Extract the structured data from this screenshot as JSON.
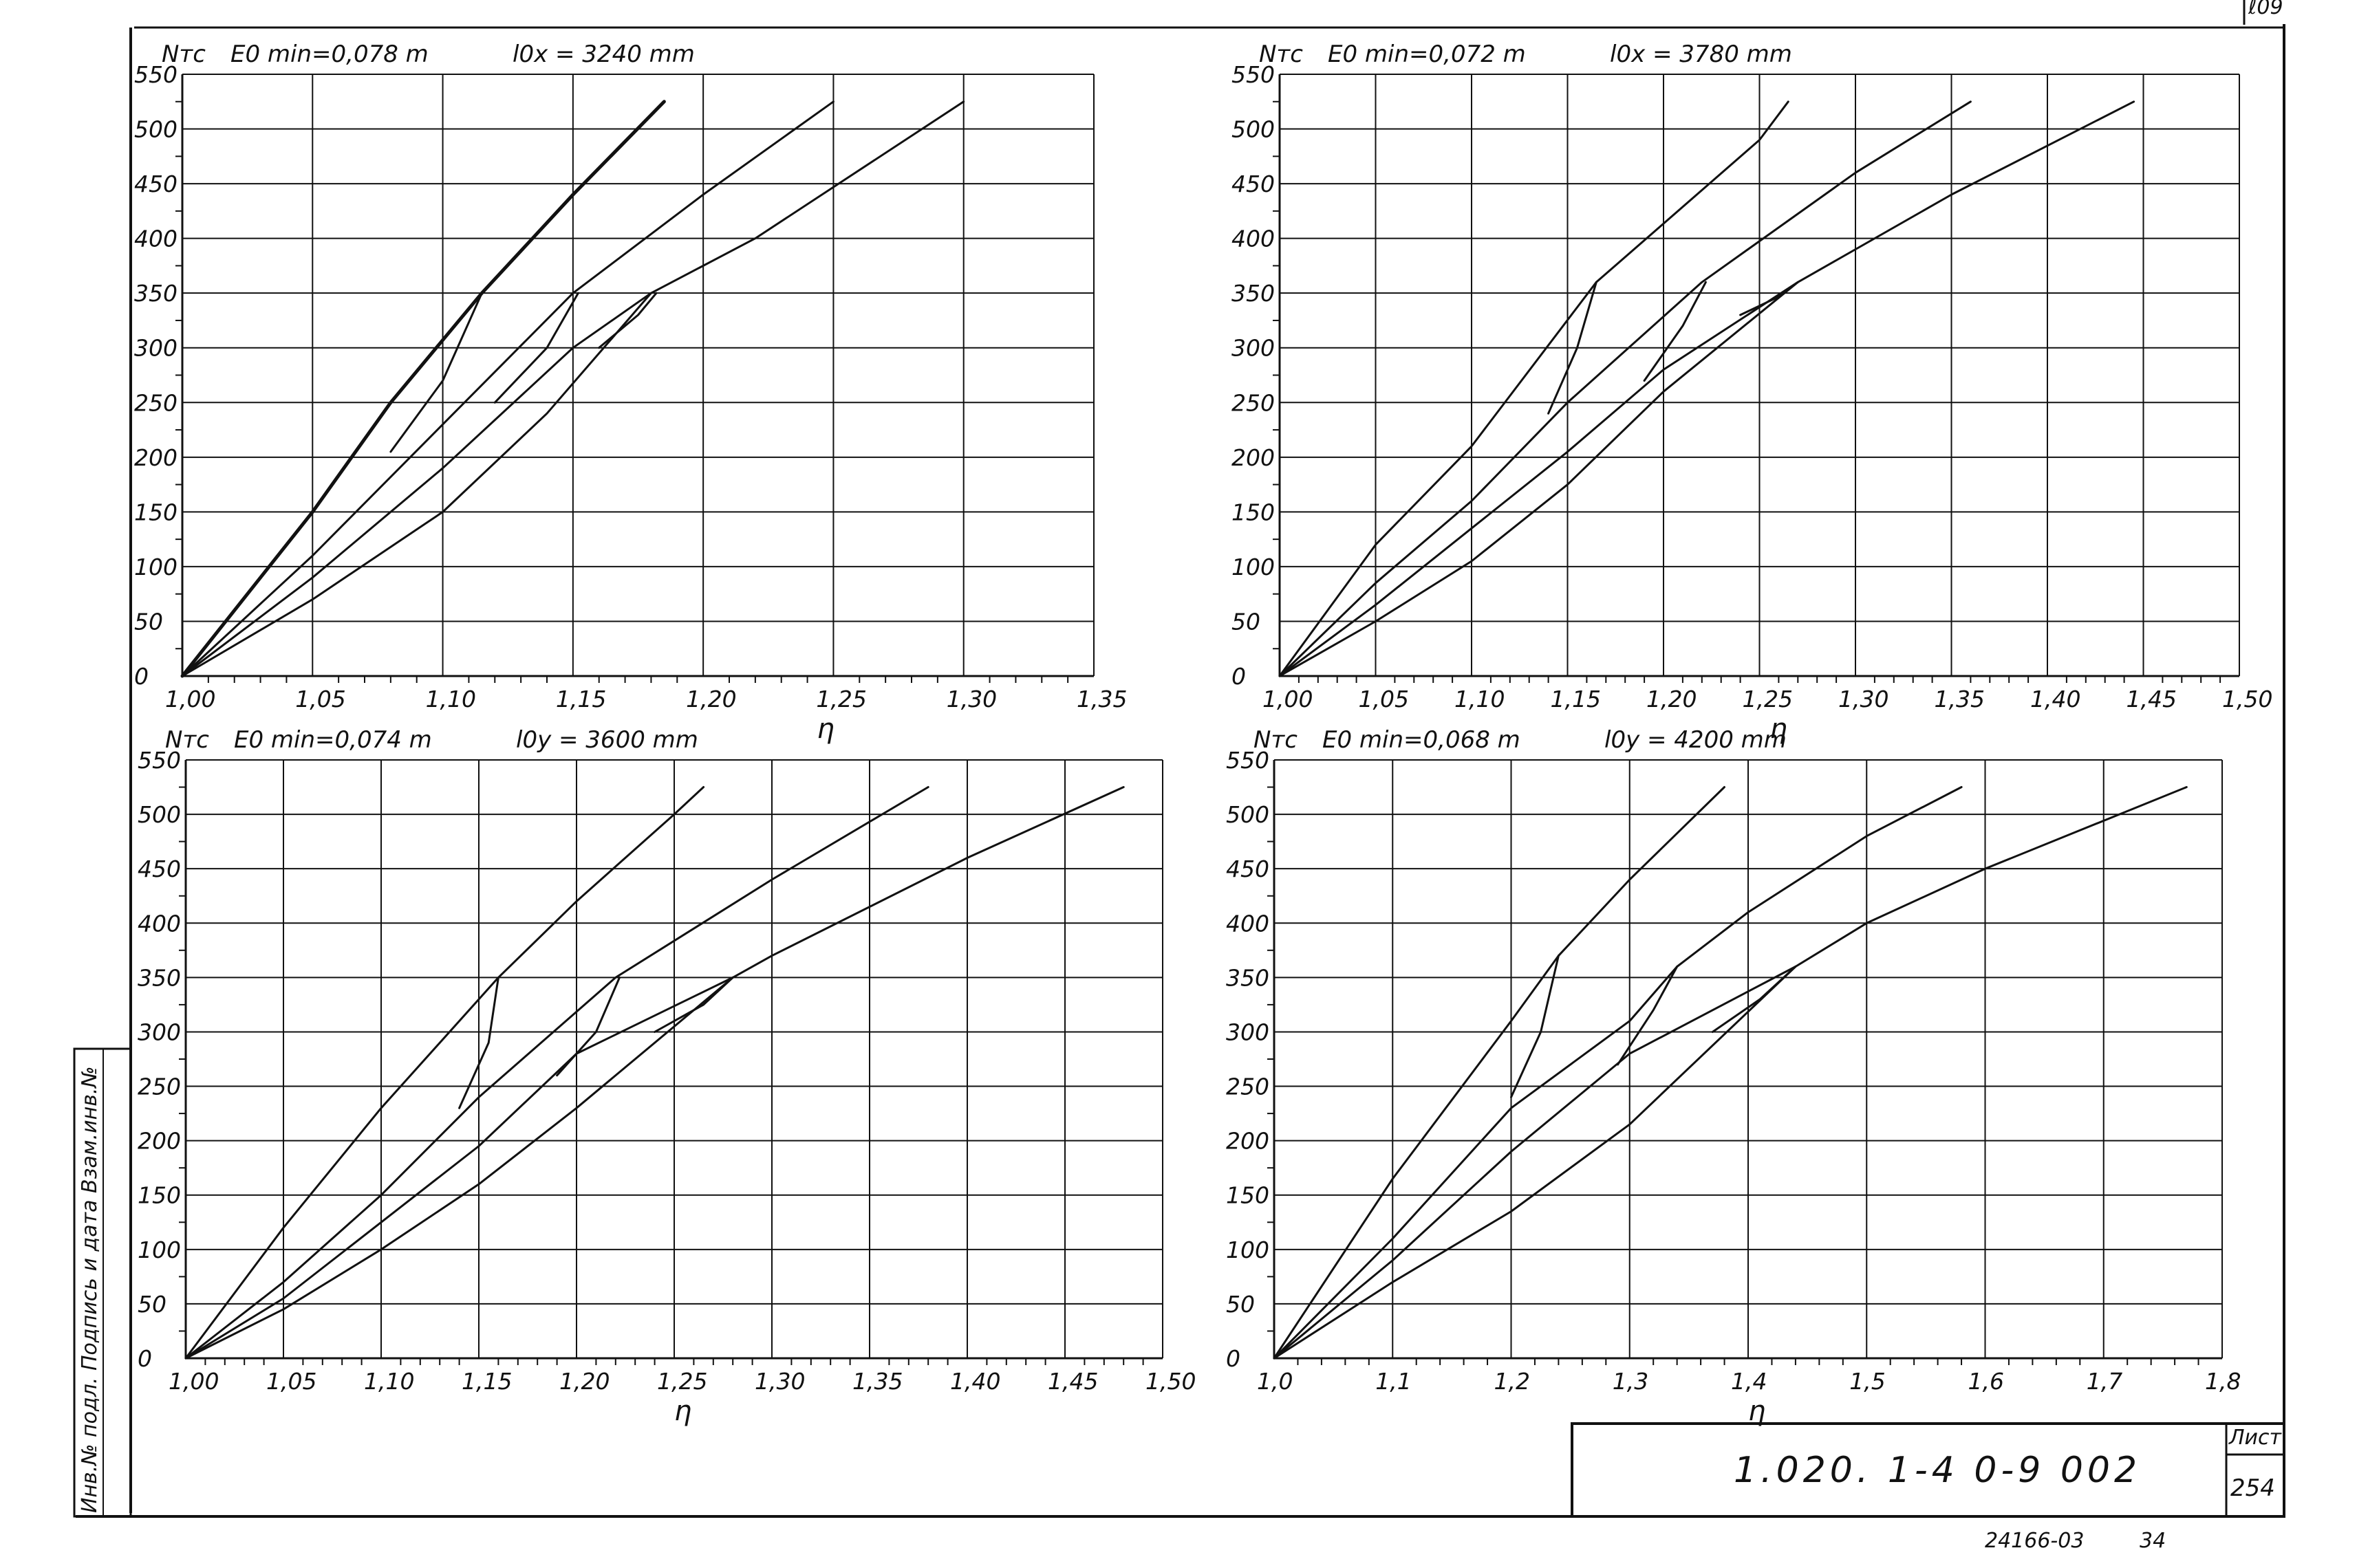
{
  "page": {
    "corner_mark": "ℓ09",
    "stamp": {
      "code": "1.020. 1-4   0-9   002",
      "sheet_label": "Лист",
      "sheet_number": "254"
    },
    "footer_code": "24166-03",
    "footer_page": "34",
    "margin_text": "Инв.№ подл.   Подпись и дата   Взам.инв.№"
  },
  "chart_data": [
    {
      "type": "line",
      "ylabel": "Nтс",
      "xlabel": "η",
      "title": "E0 min=0,078 m",
      "subtitle": "l0x = 3240 mm",
      "x_ticks": [
        "1,00",
        "1,05",
        "1,10",
        "1,15",
        "1,20",
        "1,25",
        "1,30",
        "1,35"
      ],
      "y_ticks": [
        "0",
        "50",
        "100",
        "150",
        "200",
        "250",
        "300",
        "350",
        "400",
        "450",
        "500",
        "550"
      ],
      "xlim": [
        1.0,
        1.35
      ],
      "ylim": [
        0,
        550
      ],
      "grid": true,
      "series": [
        {
          "x": [
            1.0,
            1.05,
            1.08,
            1.115,
            1.15,
            1.185
          ],
          "y": [
            0,
            150,
            250,
            350,
            440,
            525
          ]
        },
        {
          "x": [
            1.0,
            1.05,
            1.1,
            1.15,
            1.2,
            1.25
          ],
          "y": [
            0,
            110,
            230,
            350,
            440,
            525
          ]
        },
        {
          "x": [
            1.0,
            1.05,
            1.1,
            1.15,
            1.18,
            1.22,
            1.3
          ],
          "y": [
            0,
            90,
            190,
            300,
            350,
            400,
            525
          ]
        },
        {
          "x": [
            1.0,
            1.05,
            1.1,
            1.14,
            1.18
          ],
          "y": [
            0,
            70,
            150,
            240,
            350
          ]
        },
        {
          "x": [
            1.08,
            1.1,
            1.115
          ],
          "y": [
            205,
            270,
            350
          ]
        },
        {
          "x": [
            1.12,
            1.14,
            1.152
          ],
          "y": [
            250,
            300,
            350
          ]
        },
        {
          "x": [
            1.16,
            1.175,
            1.182
          ],
          "y": [
            300,
            330,
            350
          ]
        }
      ]
    },
    {
      "type": "line",
      "ylabel": "Nтс",
      "xlabel": "η",
      "title": "E0 min=0,072 m",
      "subtitle": "l0x = 3780 mm",
      "x_ticks": [
        "1,00",
        "1,05",
        "1,10",
        "1,15",
        "1,20",
        "1,25",
        "1,30",
        "1,35",
        "1,40",
        "1,45",
        "1,50"
      ],
      "y_ticks": [
        "0",
        "50",
        "100",
        "150",
        "200",
        "250",
        "300",
        "350",
        "400",
        "450",
        "500",
        "550"
      ],
      "xlim": [
        1.0,
        1.5
      ],
      "ylim": [
        0,
        550
      ],
      "grid": true,
      "series": [
        {
          "x": [
            1.0,
            1.05,
            1.1,
            1.165,
            1.25,
            1.265
          ],
          "y": [
            0,
            120,
            210,
            360,
            490,
            525
          ]
        },
        {
          "x": [
            1.0,
            1.05,
            1.1,
            1.15,
            1.22,
            1.3,
            1.36
          ],
          "y": [
            0,
            85,
            160,
            250,
            360,
            460,
            525
          ]
        },
        {
          "x": [
            1.0,
            1.05,
            1.1,
            1.15,
            1.2,
            1.27,
            1.35,
            1.445
          ],
          "y": [
            0,
            65,
            135,
            205,
            280,
            360,
            440,
            525
          ]
        },
        {
          "x": [
            1.0,
            1.05,
            1.1,
            1.15,
            1.2,
            1.27
          ],
          "y": [
            0,
            50,
            105,
            175,
            260,
            360
          ]
        },
        {
          "x": [
            1.14,
            1.155,
            1.165
          ],
          "y": [
            240,
            300,
            360
          ]
        },
        {
          "x": [
            1.19,
            1.21,
            1.222
          ],
          "y": [
            270,
            320,
            360
          ]
        },
        {
          "x": [
            1.24,
            1.258,
            1.27
          ],
          "y": [
            330,
            345,
            360
          ]
        }
      ]
    },
    {
      "type": "line",
      "ylabel": "Nтс",
      "xlabel": "η",
      "title": "E0 min=0,074 m",
      "subtitle": "l0y = 3600 mm",
      "x_ticks": [
        "1,00",
        "1,05",
        "1,10",
        "1,15",
        "1,20",
        "1,25",
        "1,30",
        "1,35",
        "1,40",
        "1,45",
        "1,50"
      ],
      "y_ticks": [
        "0",
        "50",
        "100",
        "150",
        "200",
        "250",
        "300",
        "350",
        "400",
        "450",
        "500",
        "550"
      ],
      "xlim": [
        1.0,
        1.5
      ],
      "ylim": [
        0,
        550
      ],
      "grid": true,
      "series": [
        {
          "x": [
            1.0,
            1.05,
            1.1,
            1.16,
            1.2,
            1.25,
            1.265
          ],
          "y": [
            0,
            120,
            230,
            350,
            420,
            500,
            525
          ]
        },
        {
          "x": [
            1.0,
            1.05,
            1.1,
            1.15,
            1.22,
            1.3,
            1.38
          ],
          "y": [
            0,
            70,
            150,
            240,
            350,
            440,
            525
          ]
        },
        {
          "x": [
            1.0,
            1.05,
            1.1,
            1.15,
            1.2,
            1.28,
            1.3,
            1.4,
            1.48
          ],
          "y": [
            0,
            55,
            125,
            195,
            280,
            350,
            370,
            460,
            525
          ]
        },
        {
          "x": [
            1.0,
            1.05,
            1.1,
            1.15,
            1.2,
            1.28
          ],
          "y": [
            0,
            45,
            100,
            160,
            230,
            350
          ]
        },
        {
          "x": [
            1.14,
            1.155,
            1.16
          ],
          "y": [
            230,
            290,
            350
          ]
        },
        {
          "x": [
            1.19,
            1.21,
            1.222
          ],
          "y": [
            260,
            300,
            350
          ]
        },
        {
          "x": [
            1.24,
            1.265,
            1.28
          ],
          "y": [
            300,
            325,
            350
          ]
        }
      ]
    },
    {
      "type": "line",
      "ylabel": "Nтс",
      "xlabel": "η",
      "title": "E0 min=0,068 m",
      "subtitle": "l0y = 4200 mm",
      "x_ticks": [
        "1,0",
        "1,1",
        "1,2",
        "1,3",
        "1,4",
        "1,5",
        "1,6",
        "1,7",
        "1,8"
      ],
      "y_ticks": [
        "0",
        "50",
        "100",
        "150",
        "200",
        "250",
        "300",
        "350",
        "400",
        "450",
        "500",
        "550"
      ],
      "xlim": [
        1.0,
        1.8
      ],
      "ylim": [
        0,
        550
      ],
      "grid": true,
      "series": [
        {
          "x": [
            1.0,
            1.1,
            1.2,
            1.24,
            1.3,
            1.38
          ],
          "y": [
            0,
            165,
            310,
            370,
            440,
            525
          ]
        },
        {
          "x": [
            1.0,
            1.1,
            1.2,
            1.3,
            1.34,
            1.4,
            1.5,
            1.58
          ],
          "y": [
            0,
            110,
            230,
            310,
            360,
            410,
            480,
            525
          ]
        },
        {
          "x": [
            1.0,
            1.1,
            1.2,
            1.3,
            1.44,
            1.5,
            1.6,
            1.77
          ],
          "y": [
            0,
            90,
            190,
            280,
            360,
            400,
            450,
            525
          ]
        },
        {
          "x": [
            1.0,
            1.1,
            1.2,
            1.3,
            1.44
          ],
          "y": [
            0,
            70,
            135,
            215,
            360
          ]
        },
        {
          "x": [
            1.2,
            1.225,
            1.24
          ],
          "y": [
            240,
            300,
            370
          ]
        },
        {
          "x": [
            1.29,
            1.32,
            1.34
          ],
          "y": [
            270,
            320,
            360
          ]
        },
        {
          "x": [
            1.37,
            1.41,
            1.44
          ],
          "y": [
            300,
            330,
            360
          ]
        }
      ]
    }
  ]
}
